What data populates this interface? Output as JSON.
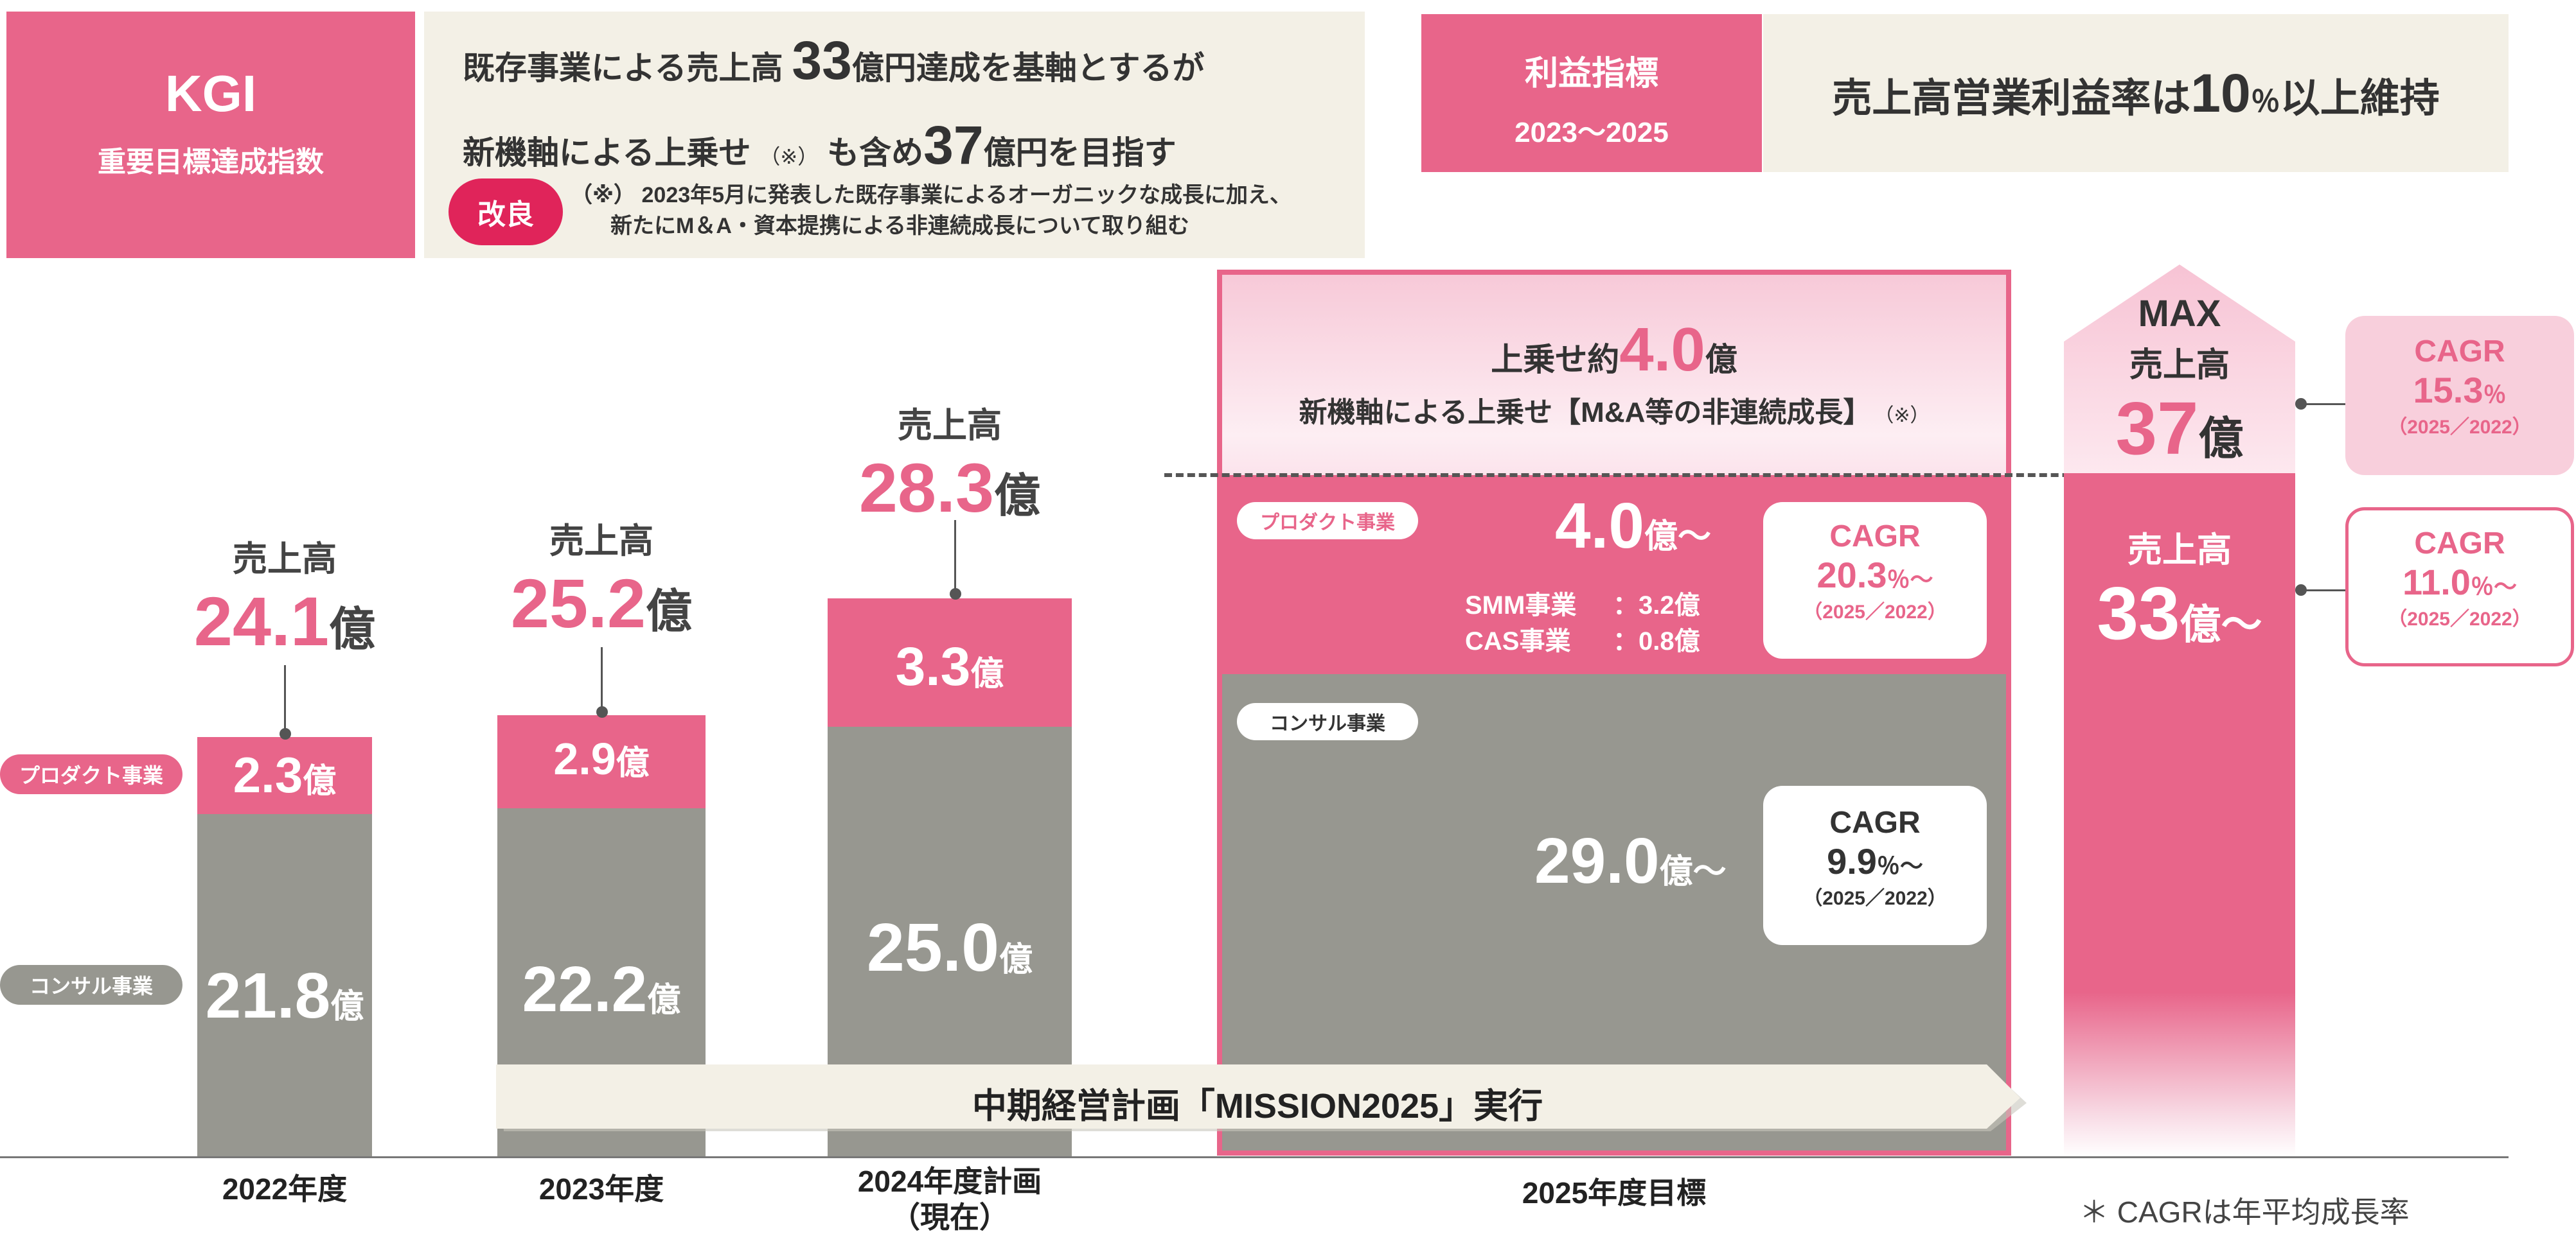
{
  "header": {
    "kgi_title": "KGI",
    "kgi_subtitle": "重要目標達成指数",
    "goal_line1_pre": "既存事業による売上高 ",
    "goal_line1_num": "33",
    "goal_line1_post": "億円達成を基軸とするが",
    "goal_line2_pre": "新機軸による上乗せ ",
    "goal_line2_note": "（※）",
    "goal_line2_mid": " も含め",
    "goal_line2_num": "37",
    "goal_line2_post": "億円を目指す",
    "kairyo_badge": "改良",
    "note_line1": "（※） 2023年5月に発表した既存事業によるオーガニックな成長に加え、",
    "note_line2": "新たにM＆A・資本提携による非連続成長について取り組む",
    "profit_title": "利益指標",
    "profit_years": "2023～2025",
    "margin_pre": "売上高営業利益率は",
    "margin_num": "10",
    "margin_unit": "％",
    "margin_post": "以上維持"
  },
  "legend": {
    "product": "プロダクト事業",
    "consul": "コンサル事業"
  },
  "colors": {
    "product": "#e8658a",
    "consul": "#979790",
    "accent": "#e0245a",
    "beige": "#f3f0e6"
  },
  "chart_data": {
    "type": "bar",
    "stacked": true,
    "categories": [
      "2022年度",
      "2023年度",
      "2024年度計画（現在）",
      "2025年度目標"
    ],
    "series": [
      {
        "name": "コンサル事業",
        "values": [
          21.8,
          22.2,
          25.0,
          29.0
        ]
      },
      {
        "name": "プロダクト事業",
        "values": [
          2.3,
          2.9,
          3.3,
          4.0
        ]
      }
    ],
    "totals": [
      24.1,
      25.2,
      28.3,
      33
    ],
    "unit": "億",
    "total_label": "売上高"
  },
  "bars": [
    {
      "category": "2022年度",
      "total": "24.1",
      "product": "2.3",
      "consul": "21.8"
    },
    {
      "category": "2023年度",
      "total": "25.2",
      "product": "2.9",
      "consul": "22.2"
    },
    {
      "category_line1": "2024年度計画",
      "category_line2": "（現在）",
      "total": "28.3",
      "product": "3.3",
      "consul": "25.0"
    }
  ],
  "units": {
    "oku": "億",
    "oku_tilde": "億～"
  },
  "target2025": {
    "category": "2025年度目標",
    "uwanose_pre": "上乗せ約",
    "uwanose_num": "4.0",
    "uwanose_unit": "億",
    "uwanose_desc": "新機軸による上乗せ【M&A等の非連続成長】",
    "uwanose_note": "（※）",
    "product_pill": "プロダクト事業",
    "product_value": "4.0",
    "smm_label": "SMM事業",
    "smm_value": "：3.2億",
    "cas_label": "CAS事業",
    "cas_value": "：0.8億",
    "product_cagr_title": "CAGR",
    "product_cagr_value": "20.3",
    "product_cagr_unit": "％～",
    "product_cagr_period": "（2025／2022）",
    "consul_pill": "コンサル事業",
    "consul_value": "29.0",
    "consul_cagr_title": "CAGR",
    "consul_cagr_value": "9.9",
    "consul_cagr_unit": "％～",
    "consul_cagr_period": "（2025／2022）"
  },
  "max_column": {
    "max_label": "MAX",
    "max_sales_label": "売上高",
    "max_value": "37",
    "max_unit": "億",
    "sales_label": "売上高",
    "sales_value": "33",
    "sales_unit": "億～",
    "cagr_max_title": "CAGR",
    "cagr_max_value": "15.3",
    "cagr_max_unit": "％",
    "cagr_max_period": "（2025／2022）",
    "cagr_min_title": "CAGR",
    "cagr_min_value": "11.0",
    "cagr_min_unit": "％～",
    "cagr_min_period": "（2025／2022）"
  },
  "plan_arrow": "中期経営計画「MISSION2025」実行",
  "footnote": "＊ CAGRは年平均成長率"
}
